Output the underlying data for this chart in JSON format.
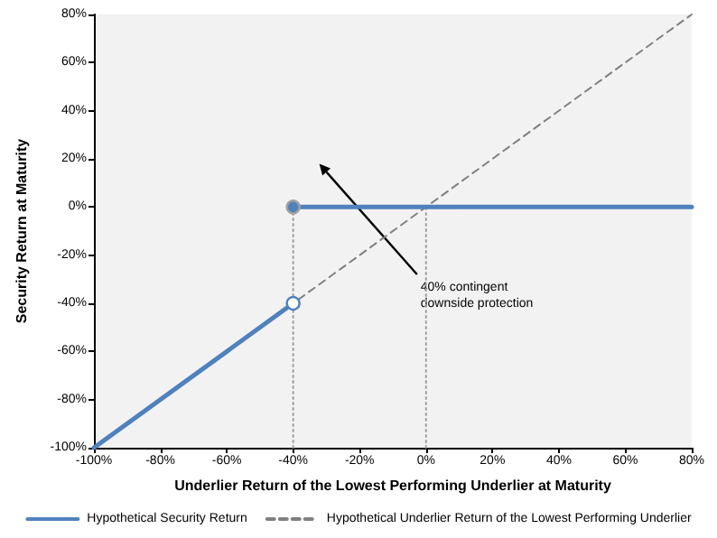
{
  "chart_data": {
    "type": "line",
    "xlabel": "Underlier Return of the Lowest Performing Underlier at Maturity",
    "ylabel": "Security Return at Maturity",
    "xlim": [
      -100,
      80
    ],
    "ylim": [
      -100,
      80
    ],
    "xticks": [
      {
        "value": -100,
        "label": "-100%"
      },
      {
        "value": -80,
        "label": "-80%"
      },
      {
        "value": -60,
        "label": "-60%"
      },
      {
        "value": -40,
        "label": "-40%"
      },
      {
        "value": -20,
        "label": "-20%"
      },
      {
        "value": 0,
        "label": "0%"
      },
      {
        "value": 20,
        "label": "20%"
      },
      {
        "value": 40,
        "label": "40%"
      },
      {
        "value": 60,
        "label": "60%"
      },
      {
        "value": 80,
        "label": "80%"
      }
    ],
    "yticks": [
      {
        "value": -100,
        "label": "-100%"
      },
      {
        "value": -80,
        "label": "-80%"
      },
      {
        "value": -60,
        "label": "-60%"
      },
      {
        "value": -40,
        "label": "-40%"
      },
      {
        "value": -20,
        "label": "-20%"
      },
      {
        "value": 0,
        "label": "0%"
      },
      {
        "value": 20,
        "label": "20%"
      },
      {
        "value": 40,
        "label": "40%"
      },
      {
        "value": 60,
        "label": "60%"
      },
      {
        "value": 80,
        "label": "80%"
      }
    ],
    "grid": false,
    "legend": "bottom",
    "annotations": [
      "40% contingent downside protection"
    ],
    "series": [
      {
        "name": "Hypothetical Underlier Return of the Lowest Performing Underlier",
        "color": "#808080",
        "line_style": "dashed",
        "marker": "none",
        "x": [
          -100,
          80
        ],
        "values": [
          -100,
          80
        ]
      },
      {
        "color": "#a0a0a0",
        "line_style": "dotted",
        "marker": "none",
        "x": [
          -40,
          -40
        ],
        "values": [
          -100,
          0
        ]
      },
      {
        "color": "#a0a0a0",
        "line_style": "dotted",
        "marker": "none",
        "x": [
          0,
          0
        ],
        "values": [
          -100,
          0
        ]
      },
      {
        "name": "Hypothetical Security Return",
        "color": "#4f81bd",
        "line_style": "solid",
        "marker": "none",
        "x": [
          -100,
          -40
        ],
        "values": [
          -100,
          -40
        ]
      },
      {
        "color": "#4f81bd",
        "line_style": "solid",
        "marker": "none",
        "x": [
          -40,
          80
        ],
        "values": [
          0,
          0
        ]
      },
      {
        "type": "scatter",
        "color": "#ffffff",
        "marker": "circle",
        "x": [
          -40
        ],
        "values": [
          -40
        ]
      },
      {
        "type": "scatter",
        "color": "#4f81bd",
        "marker": "circle",
        "x": [
          -40
        ],
        "values": [
          0
        ]
      }
    ]
  }
}
